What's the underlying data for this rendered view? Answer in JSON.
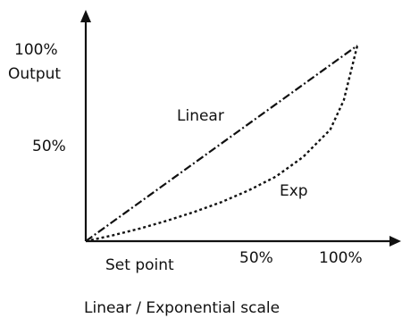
{
  "chart_data": {
    "type": "line",
    "title": "",
    "xlabel": "Set point",
    "ylabel": "Output",
    "caption": "Linear / Exponential scale",
    "xlim": [
      0,
      100
    ],
    "ylim": [
      0,
      100
    ],
    "x_ticks": [
      "50%",
      "100%"
    ],
    "y_ticks": [
      "50%",
      "100%"
    ],
    "grid": false,
    "series": [
      {
        "name": "Linear",
        "style": "dash-dot",
        "x": [
          0,
          100
        ],
        "y": [
          0,
          100
        ]
      },
      {
        "name": "Exp",
        "style": "dotted",
        "x": [
          0,
          10,
          20,
          30,
          40,
          50,
          60,
          70,
          80,
          90,
          95,
          100
        ],
        "y": [
          0,
          3,
          6.5,
          10.5,
          15,
          20,
          26,
          33,
          43,
          57,
          72,
          100
        ]
      }
    ]
  }
}
